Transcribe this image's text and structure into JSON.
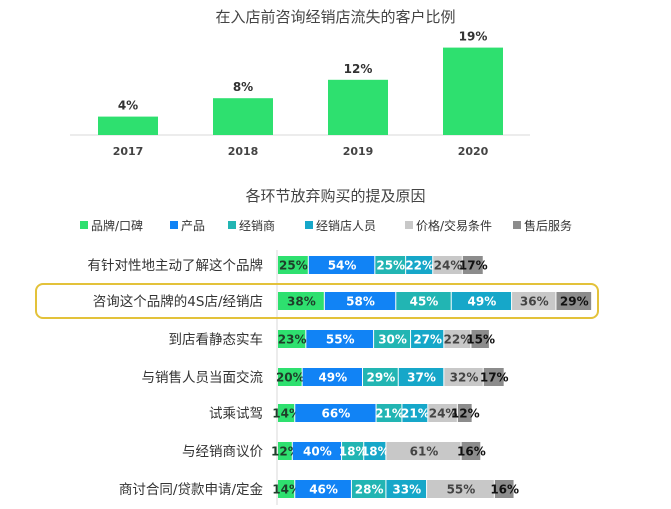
{
  "colors": {
    "brand": "#2ee06f",
    "product": "#1183f5",
    "dealer": "#22b5b3",
    "staff": "#16a7c9",
    "price": "#c8c8c8",
    "service": "#8c8c8c",
    "highlight": "#e3c23a"
  },
  "chart_data": [
    {
      "type": "bar",
      "title": "在入店前咨询经销店流失的客户比例",
      "categories": [
        "2017",
        "2018",
        "2019",
        "2020"
      ],
      "values": [
        4,
        8,
        12,
        19
      ],
      "data_labels": [
        "4%",
        "8%",
        "12%",
        "19%"
      ],
      "ylim": [
        0,
        20
      ],
      "grid": false
    },
    {
      "type": "bar",
      "stacked": true,
      "orientation": "horizontal",
      "title": "各环节放弃购买的提及原因",
      "legend_position": "top",
      "categories": [
        "有针对性地主动了解这个品牌",
        "咨询这个品牌的4S店/经销店",
        "到店看静态实车",
        "与销售人员当面交流",
        "试乘试驾",
        "与经销商议价",
        "商讨合同/贷款申请/定金"
      ],
      "highlighted_category": "咨询这个品牌的4S店/经销店",
      "series": [
        {
          "name": "品牌/口碑",
          "values": [
            25,
            38,
            23,
            20,
            14,
            12,
            14
          ]
        },
        {
          "name": "产品",
          "values": [
            54,
            58,
            55,
            49,
            66,
            40,
            46
          ]
        },
        {
          "name": "经销商",
          "values": [
            25,
            45,
            30,
            29,
            21,
            18,
            28
          ]
        },
        {
          "name": "经销店人员",
          "values": [
            22,
            49,
            27,
            37,
            21,
            18,
            33
          ]
        },
        {
          "name": "价格/交易条件",
          "values": [
            24,
            36,
            22,
            32,
            24,
            61,
            55
          ]
        },
        {
          "name": "售后服务",
          "values": [
            17,
            29,
            15,
            17,
            12,
            16,
            16
          ]
        }
      ],
      "grid": false
    }
  ]
}
